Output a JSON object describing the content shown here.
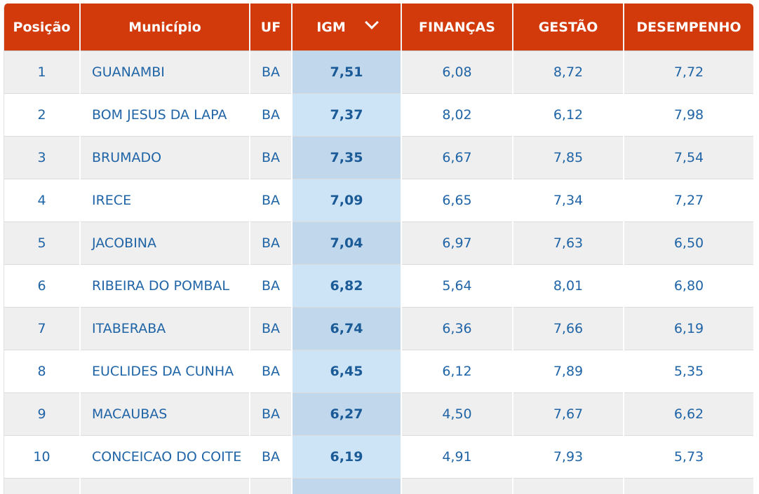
{
  "table": {
    "headers": {
      "posicao": "Posição",
      "municipio": "Município",
      "uf": "UF",
      "igm": "IGM",
      "financas": "FINANÇAS",
      "gestao": "GESTÃO",
      "desempenho": "DESEMPENHO"
    },
    "sort": {
      "column": "IGM",
      "direction": "descending",
      "icon": "chevron-down-icon"
    },
    "rows": [
      {
        "pos": "1",
        "municipio": "GUANAMBI",
        "uf": "BA",
        "igm": "7,51",
        "financas": "6,08",
        "gestao": "8,72",
        "desempenho": "7,72"
      },
      {
        "pos": "2",
        "municipio": "BOM JESUS DA LAPA",
        "uf": "BA",
        "igm": "7,37",
        "financas": "8,02",
        "gestao": "6,12",
        "desempenho": "7,98"
      },
      {
        "pos": "3",
        "municipio": "BRUMADO",
        "uf": "BA",
        "igm": "7,35",
        "financas": "6,67",
        "gestao": "7,85",
        "desempenho": "7,54"
      },
      {
        "pos": "4",
        "municipio": "IRECE",
        "uf": "BA",
        "igm": "7,09",
        "financas": "6,65",
        "gestao": "7,34",
        "desempenho": "7,27"
      },
      {
        "pos": "5",
        "municipio": "JACOBINA",
        "uf": "BA",
        "igm": "7,04",
        "financas": "6,97",
        "gestao": "7,63",
        "desempenho": "6,50"
      },
      {
        "pos": "6",
        "municipio": "RIBEIRA DO POMBAL",
        "uf": "BA",
        "igm": "6,82",
        "financas": "5,64",
        "gestao": "8,01",
        "desempenho": "6,80"
      },
      {
        "pos": "7",
        "municipio": "ITABERABA",
        "uf": "BA",
        "igm": "6,74",
        "financas": "6,36",
        "gestao": "7,66",
        "desempenho": "6,19"
      },
      {
        "pos": "8",
        "municipio": "EUCLIDES DA CUNHA",
        "uf": "BA",
        "igm": "6,45",
        "financas": "6,12",
        "gestao": "7,89",
        "desempenho": "5,35"
      },
      {
        "pos": "9",
        "municipio": "MACAUBAS",
        "uf": "BA",
        "igm": "6,27",
        "financas": "4,50",
        "gestao": "7,67",
        "desempenho": "6,62"
      },
      {
        "pos": "10",
        "municipio": "CONCEICAO DO COITE",
        "uf": "BA",
        "igm": "6,19",
        "financas": "4,91",
        "gestao": "7,93",
        "desempenho": "5,73"
      }
    ]
  },
  "colors": {
    "header_bg": "#d23a0c",
    "link_text": "#1f64a6",
    "igm_highlight": "#cde3f6",
    "row_alt": "#efefef"
  }
}
